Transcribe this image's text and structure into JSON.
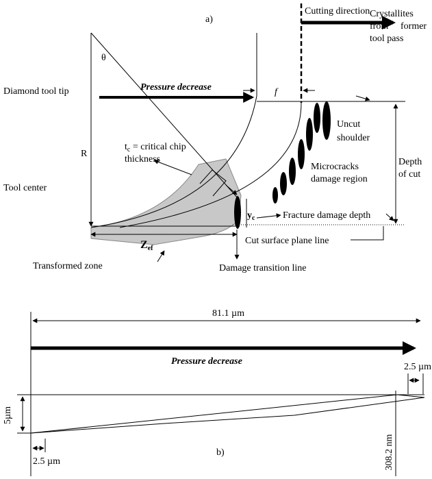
{
  "panel_a": {
    "label": "a)",
    "cutting_direction": "Cutting direction",
    "theta": "θ",
    "feed": "f",
    "crystallites": [
      "Crystallites",
      "from",
      "former",
      "tool pass"
    ],
    "diamond_tool_tip": "Diamond tool tip",
    "pressure_decrease": "Pressure decrease",
    "radius": "R",
    "critical_chip": {
      "main": "t",
      "sub": "c",
      "rest": " = critical chip",
      "line2": "thickness"
    },
    "uncut_shoulder": [
      "Uncut",
      "shoulder"
    ],
    "microcracks": [
      "Microcracks",
      "damage region"
    ],
    "depth_of_cut": [
      "Depth",
      "of cut"
    ],
    "tool_center": "Tool center",
    "yc": {
      "main": "y",
      "sub": "c"
    },
    "fracture_damage_depth": "Fracture damage depth",
    "cut_surface_plane_line": "Cut surface plane line",
    "zef": {
      "main": "Z",
      "sub": "ef"
    },
    "transformed_zone": "Transformed zone",
    "damage_transition_line": "Damage transition line"
  },
  "panel_b": {
    "label": "b)",
    "length": "81.1 µm",
    "pressure_decrease": "Pressure decrease",
    "right_offset": "2.5 µm",
    "height": "5µm",
    "depth": "308.2 nm",
    "left_offset": "2.5 µm"
  }
}
